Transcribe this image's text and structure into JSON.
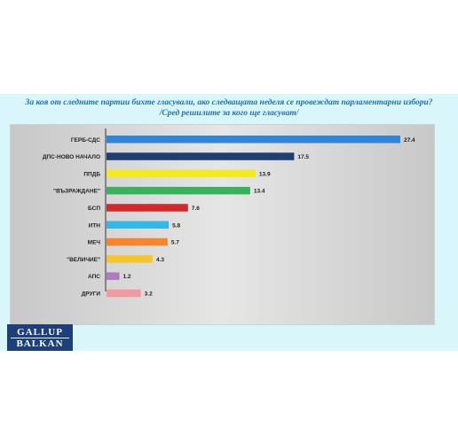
{
  "header": {
    "title": "За коя от следните партии бихте  гласували,  ако следващата неделя се провеждат парламентарни избори?",
    "subtitle": "/Сред решилите за кого ще гласуват/"
  },
  "logo": {
    "line1": "GALLUP",
    "line2": "BALKAN"
  },
  "chart_data": {
    "type": "bar",
    "orientation": "horizontal",
    "categories": [
      "ГЕРБ-СДС",
      "ДПС-НОВО НАЧАЛО",
      "ППДБ",
      "\"ВЪЗРАЖДАНЕ\"",
      "БСП",
      "ИТН",
      "МЕЧ",
      "\"ВЕЛИЧИЕ\"",
      "АПС",
      "ДРУГИ"
    ],
    "values": [
      27.4,
      17.5,
      13.9,
      13.4,
      7.6,
      5.8,
      5.7,
      4.3,
      1.2,
      3.2
    ],
    "value_labels": [
      "27.4",
      "17.5",
      "13.9",
      "13.4",
      "7.6",
      "5.8",
      "5.7",
      "4.3",
      "1.2",
      "3.2"
    ],
    "colors": [
      "#2f86d8",
      "#1f3f73",
      "#f4ea1c",
      "#37b35c",
      "#d12a2a",
      "#35b8e8",
      "#f7852a",
      "#f5c62c",
      "#b07ac0",
      "#f39aa0"
    ],
    "xlim": [
      0,
      27.4
    ],
    "grid": false,
    "legend": "none"
  }
}
